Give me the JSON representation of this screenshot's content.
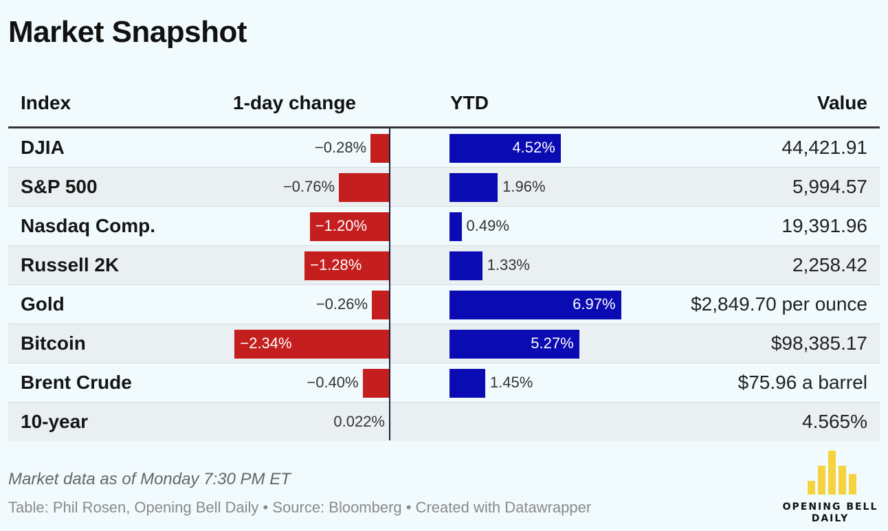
{
  "title": "Market Snapshot",
  "columns": {
    "index": "Index",
    "day_change": "1-day change",
    "ytd": "YTD",
    "value": "Value"
  },
  "chart_data": {
    "type": "table",
    "title": "Market Snapshot",
    "columns": [
      "Index",
      "1-day change",
      "YTD",
      "Value"
    ],
    "rows": [
      {
        "name": "DJIA",
        "day_change": -0.28,
        "day_label": "−0.28%",
        "ytd": 4.52,
        "ytd_label": "4.52%",
        "value": "44,421.91"
      },
      {
        "name": "S&P 500",
        "day_change": -0.76,
        "day_label": "−0.76%",
        "ytd": 1.96,
        "ytd_label": "1.96%",
        "value": "5,994.57"
      },
      {
        "name": "Nasdaq Comp.",
        "day_change": -1.2,
        "day_label": "−1.20%",
        "ytd": 0.49,
        "ytd_label": "0.49%",
        "value": "19,391.96"
      },
      {
        "name": "Russell 2K",
        "day_change": -1.28,
        "day_label": "−1.28%",
        "ytd": 1.33,
        "ytd_label": "1.33%",
        "value": "2,258.42"
      },
      {
        "name": "Gold",
        "day_change": -0.26,
        "day_label": "−0.26%",
        "ytd": 6.97,
        "ytd_label": "6.97%",
        "value": "$2,849.70 per ounce"
      },
      {
        "name": "Bitcoin",
        "day_change": -2.34,
        "day_label": "−2.34%",
        "ytd": 5.27,
        "ytd_label": "5.27%",
        "value": "$98,385.17"
      },
      {
        "name": "Brent Crude",
        "day_change": -0.4,
        "day_label": "−0.40%",
        "ytd": 1.45,
        "ytd_label": "1.45%",
        "value": "$75.96 a barrel"
      },
      {
        "name": "10-year",
        "day_change": 0.022,
        "day_label": "0.022%",
        "ytd": null,
        "ytd_label": "",
        "value": "4.565%"
      }
    ]
  },
  "colors": {
    "negative": "#c41e1e",
    "positive": "#0a0bb2",
    "background": "#f1fafd",
    "logo": "#f5d33f"
  },
  "note": "Market data as of Monday 7:30 PM ET",
  "credit": "Table: Phil Rosen, Opening Bell Daily • Source: Bloomberg • Created with Datawrapper",
  "logo": {
    "text": "OPENING BELL DAILY",
    "icon": "bar-chart-logo-icon"
  }
}
